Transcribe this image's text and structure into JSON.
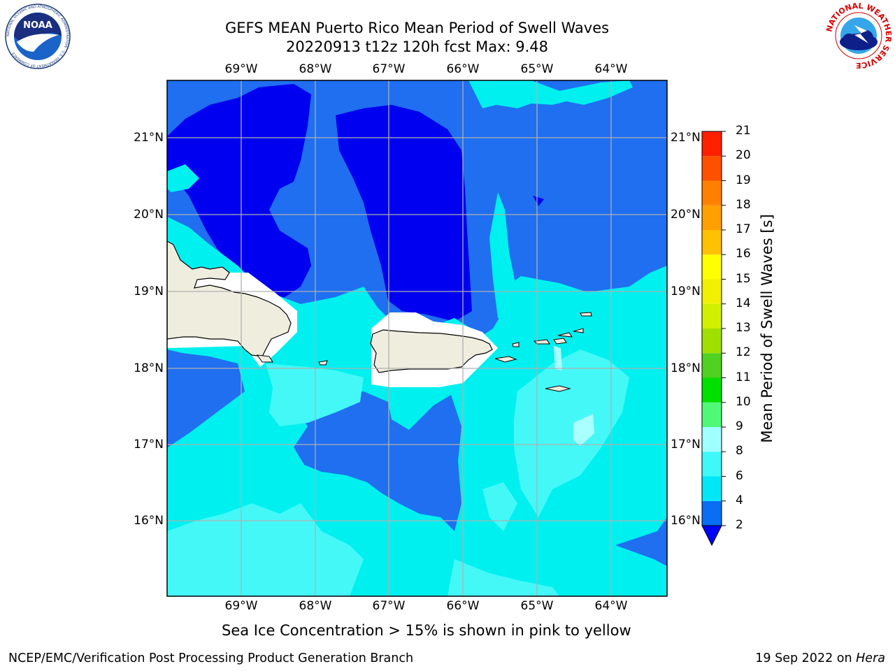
{
  "title": {
    "line1": "GEFS MEAN Puerto Rico Mean Period of Swell Waves",
    "line2": "20220913 t12z 120h fcst   Max: 9.48"
  },
  "map": {
    "lon_labels": [
      "69°W",
      "68°W",
      "67°W",
      "66°W",
      "65°W",
      "64°W"
    ],
    "lat_labels": [
      "21°N",
      "20°N",
      "19°N",
      "18°N",
      "17°N",
      "16°N"
    ],
    "colors": {
      "land": "#efedde",
      "grid": "#b0b0b0",
      "level_2_4": "#1f6ff0",
      "level_lt2": "#0000f5",
      "level_4_6": "#00f0f0",
      "level_6_8": "#44f8f8",
      "level_8_9": "#aaffff",
      "masked": "#ffffff"
    }
  },
  "colorbar": {
    "title": "Mean Period of Swell Waves [s]",
    "ticks": [
      "2",
      "4",
      "6",
      "8",
      "9",
      "10",
      "11",
      "12",
      "13",
      "14",
      "15",
      "16",
      "17",
      "18",
      "19",
      "20",
      "21"
    ],
    "segment_colors": [
      "#0a6ef5",
      "#00e8f8",
      "#3ff8f8",
      "#a0ffff",
      "#50f878",
      "#00e000",
      "#50d020",
      "#a0e000",
      "#d0f000",
      "#f0f000",
      "#ffff00",
      "#ffc000",
      "#ffa000",
      "#ff8000",
      "#ff5000",
      "#ff2000",
      "#ff0000"
    ],
    "extend_color": "#0000ff"
  },
  "caption": "Sea Ice Concentration > 15% is shown in pink to yellow",
  "footer": {
    "left": "NCEP/EMC/Verification Post Processing Product Generation Branch",
    "right_prefix": "19 Sep 2022 on ",
    "right_host": "Hera"
  },
  "logos": {
    "noaa_text": "NOAA",
    "noaa_ring": "NATIONAL OCEANIC AND ATMOSPHERIC ADMINISTRATION · U.S. DEPARTMENT OF COMMERCE",
    "nws_ring": "NATIONAL WEATHER SERVICE"
  }
}
